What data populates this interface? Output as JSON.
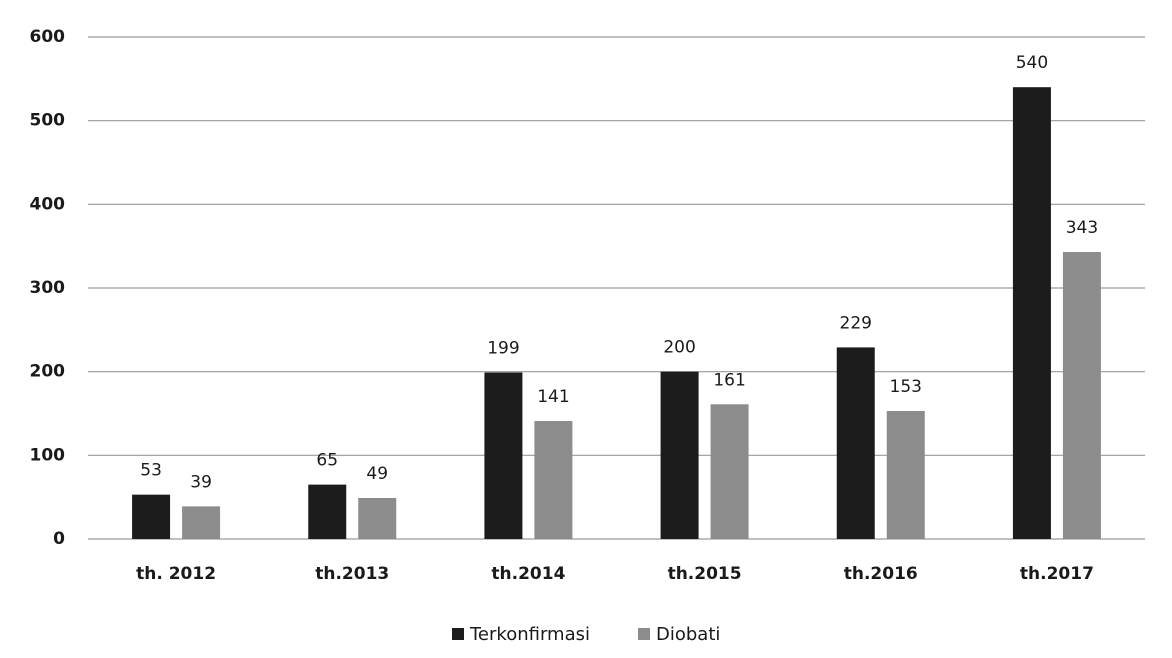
{
  "chart_data": {
    "type": "bar",
    "categories": [
      "th. 2012",
      "th.2013",
      "th.2014",
      "th.2015",
      "th.2016",
      "th.2017"
    ],
    "series": [
      {
        "name": "Terkonfirmasi",
        "color": "#1c1c1c",
        "values": [
          53,
          65,
          199,
          200,
          229,
          540
        ]
      },
      {
        "name": "Diobati",
        "color": "#8c8c8c",
        "values": [
          39,
          49,
          141,
          161,
          153,
          343
        ]
      }
    ],
    "ylim": [
      0,
      600
    ],
    "yticks": [
      0,
      100,
      200,
      300,
      400,
      500,
      600
    ],
    "grid": true,
    "legend": "bottom"
  }
}
